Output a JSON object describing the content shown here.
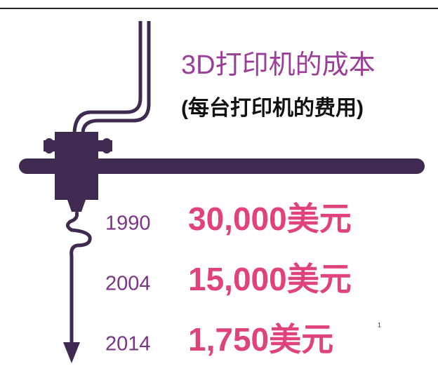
{
  "header": {
    "title": "3D打印机的成本",
    "subtitle": "(每台打印机的费用)"
  },
  "items": [
    {
      "year": "1990",
      "cost": "30,000美元"
    },
    {
      "year": "2004",
      "cost": "15,000美元"
    },
    {
      "year": "2014",
      "cost": "1,750美元"
    }
  ],
  "footnote": "1"
}
